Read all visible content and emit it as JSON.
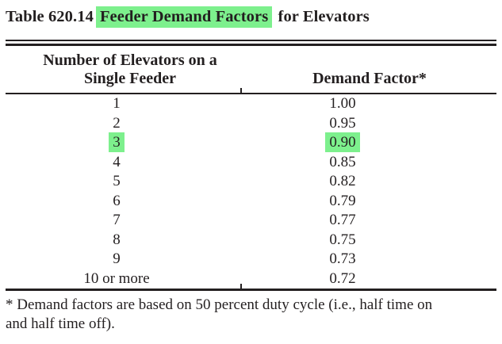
{
  "colors": {
    "highlight": "#7df08d",
    "ink": "#231f20",
    "background": "#ffffff"
  },
  "title": {
    "prefix": "Table 620.14",
    "highlighted_phrase": "Feeder Demand Factors",
    "suffix": "for Elevators"
  },
  "table": {
    "header": {
      "col1_line1": "Number of Elevators on a",
      "col1_line2": "Single Feeder",
      "col2": "Demand Factor*"
    },
    "rows": [
      {
        "elevators": "1",
        "factor": "1.00",
        "highlighted": false
      },
      {
        "elevators": "2",
        "factor": "0.95",
        "highlighted": false
      },
      {
        "elevators": "3",
        "factor": "0.90",
        "highlighted": true
      },
      {
        "elevators": "4",
        "factor": "0.85",
        "highlighted": false
      },
      {
        "elevators": "5",
        "factor": "0.82",
        "highlighted": false
      },
      {
        "elevators": "6",
        "factor": "0.79",
        "highlighted": false
      },
      {
        "elevators": "7",
        "factor": "0.77",
        "highlighted": false
      },
      {
        "elevators": "8",
        "factor": "0.75",
        "highlighted": false
      },
      {
        "elevators": "9",
        "factor": "0.73",
        "highlighted": false
      },
      {
        "elevators": "10 or more",
        "factor": "0.72",
        "highlighted": false
      }
    ]
  },
  "footnote": {
    "line1": "* Demand factors are based on 50 percent duty cycle (i.e., half time on",
    "line2": "and half time off).",
    "full_text": "* Demand factors are based on 50 percent duty cycle (i.e., half time on and half time off)."
  }
}
